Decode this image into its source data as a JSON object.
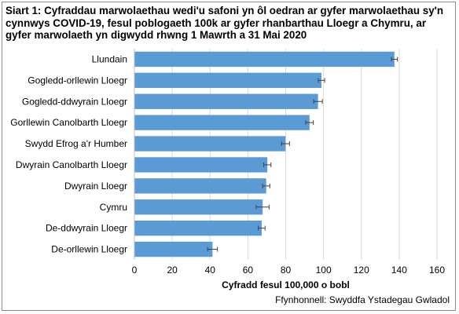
{
  "chart_data": {
    "type": "bar",
    "orientation": "horizontal",
    "title": "Siart 1: Cyfraddau marwolaethau wedi'u safoni yn ôl oedran ar gyfer marwolaethau sy'n cynnwys COVID-19, fesul poblogaeth 100k ar gyfer rhanbarthau Lloegr a Chymru, ar gyfer marwolaeth yn digwydd rhwng 1 Mawrth a 31 Mai 2020",
    "xlabel": "Cyfradd fesul 100,000 o bobl",
    "ylabel": "",
    "xlim": [
      0,
      160
    ],
    "xticks": [
      0,
      20,
      40,
      60,
      80,
      100,
      120,
      140,
      160
    ],
    "grid": true,
    "categories": [
      "Llundain",
      "Gogledd-orllewin Lloegr",
      "Gogledd-ddwyrain Lloegr",
      "Gorllewin Canolbarth Lloegr",
      "Swydd Efrog a'r Humber",
      "Dwyrain Canolbarth Lloegr",
      "Dwyrain Lloegr",
      "Cymru",
      "De-ddwyrain Lloegr",
      "De-orllewin Lloegr"
    ],
    "values": [
      137.5,
      98.9,
      97.1,
      92.6,
      79.9,
      70.3,
      69.7,
      67.8,
      67.3,
      41.3
    ],
    "error_low": [
      135.9,
      97.2,
      94.8,
      90.6,
      77.8,
      68.4,
      67.8,
      64.4,
      65.5,
      38.7
    ],
    "error_high": [
      139.1,
      100.6,
      99.4,
      94.6,
      82.0,
      72.2,
      71.6,
      71.2,
      69.1,
      43.9
    ],
    "bar_color": "#5b9bd5",
    "error_color": "#404040",
    "source": "Ffynhonnell: Swyddfa Ystadegau Gwladol"
  }
}
